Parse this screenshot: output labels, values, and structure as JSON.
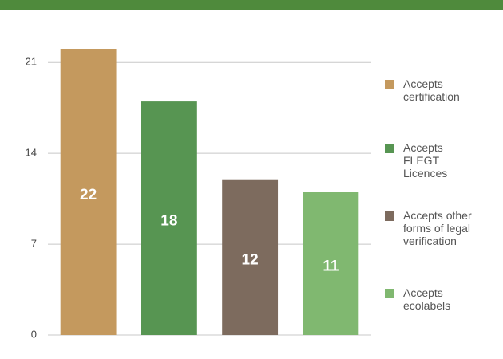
{
  "chart_data": {
    "type": "bar",
    "categories": [
      "Accepts certification",
      "Accepts FLEGT Licences",
      "Accepts other forms of legal verification",
      "Accepts ecolabels"
    ],
    "values": [
      22,
      18,
      12,
      11
    ],
    "colors": [
      "#c4995e",
      "#579552",
      "#7d6b5e",
      "#80b870"
    ],
    "ylim": [
      0,
      22
    ],
    "yticks": [
      0,
      7,
      14,
      21
    ],
    "grid": true,
    "legend": "right"
  }
}
